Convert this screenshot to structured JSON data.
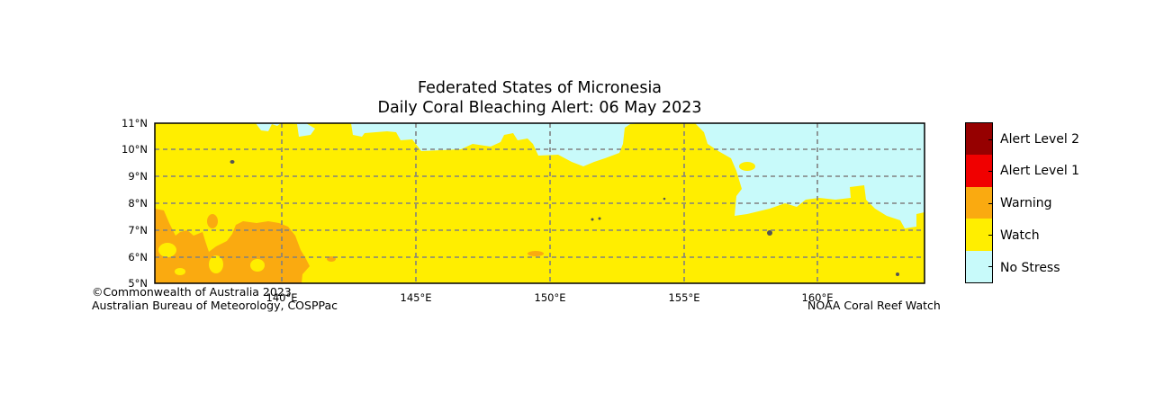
{
  "title_line1": "Federated States of Micronesia",
  "title_line2": "Daily Coral Bleaching Alert: 06 May 2023",
  "colors": {
    "no_stress": "#c8fafa",
    "watch": "#ffee00",
    "warning": "#faaa10",
    "alert1": "#f00000",
    "alert2": "#960000",
    "land": "#555555",
    "grid": "#808080"
  },
  "lat_ticks": [
    "11°N",
    "10°N",
    "9°N",
    "8°N",
    "7°N",
    "6°N",
    "5°N"
  ],
  "lon_ticks": [
    "140°E",
    "145°E",
    "150°E",
    "155°E",
    "160°E"
  ],
  "legend": [
    {
      "label": "Alert Level 2",
      "color": "#960000"
    },
    {
      "label": "Alert Level 1",
      "color": "#f00000"
    },
    {
      "label": "Warning",
      "color": "#faaa10"
    },
    {
      "label": "Watch",
      "color": "#ffee00"
    },
    {
      "label": "No Stress",
      "color": "#c8fafa"
    }
  ],
  "credit_left_1": "©Commonwealth of Australia 2023",
  "credit_left_2": "Australian Bureau of Meteorology, COSPPac",
  "credit_right": "NOAA Coral Reef Watch"
}
